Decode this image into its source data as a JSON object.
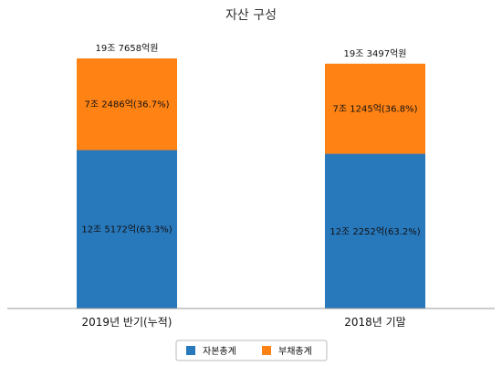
{
  "chart_data": {
    "type": "bar",
    "stacked": true,
    "title": "자산 구성",
    "categories": [
      "2019년 반기(누적)",
      "2018년 기말"
    ],
    "totals": [
      {
        "value": 197658,
        "label": "19조 7658억원"
      },
      {
        "value": 193497,
        "label": "19조 3497억원"
      }
    ],
    "series": [
      {
        "name": "자본총계",
        "color": "#2878bc",
        "values": [
          125172,
          122252
        ],
        "labels": [
          "12조 5172억(63.3%)",
          "12조 2252억(63.2%)"
        ]
      },
      {
        "name": "부채총계",
        "color": "#ff8214",
        "values": [
          72486,
          71245
        ],
        "labels": [
          "7조 2486억(36.7%)",
          "7조 1245억(36.8%)"
        ]
      }
    ],
    "ylim": [
      0,
      197658
    ],
    "grid": false,
    "legend_position": "bottom"
  }
}
